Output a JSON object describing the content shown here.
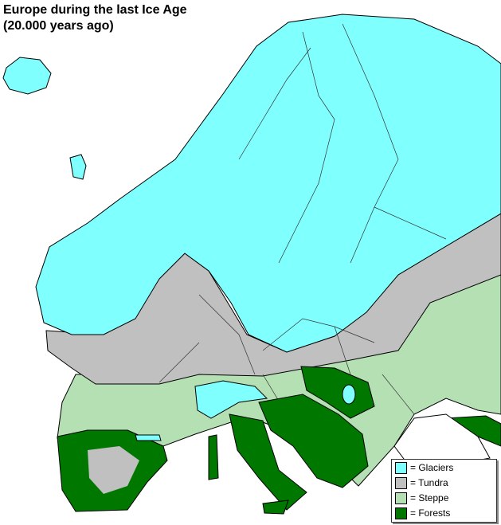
{
  "title_line1": "Europe during the last Ice Age",
  "title_line2": "(20.000 years ago)",
  "colors": {
    "glaciers": "#80ffff",
    "tundra": "#c0c0c0",
    "steppe": "#b4e0b4",
    "forests": "#007800",
    "sea": "#ffffff"
  },
  "legend": [
    {
      "label": "= Glaciers",
      "color": "#80ffff"
    },
    {
      "label": "= Tundra",
      "color": "#c0c0c0"
    },
    {
      "label": "= Steppe",
      "color": "#b4e0b4"
    },
    {
      "label": "= Forests",
      "color": "#007800"
    }
  ]
}
